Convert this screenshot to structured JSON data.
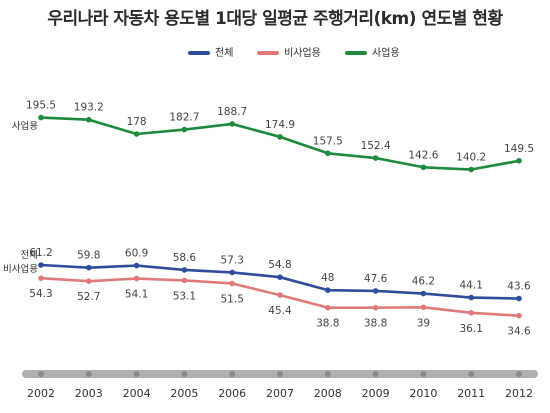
{
  "chart_data": {
    "type": "line",
    "title": "우리나라 자동차 용도별 1대당 일평균 주행거리(km) 연도별 현황",
    "categories": [
      "2002",
      "2003",
      "2004",
      "2005",
      "2006",
      "2007",
      "2008",
      "2009",
      "2010",
      "2011",
      "2012"
    ],
    "series": [
      {
        "name": "전체",
        "color": "#2e4e9c",
        "values": [
          61.2,
          59.8,
          60.9,
          58.6,
          57.3,
          54.8,
          48,
          47.6,
          46.2,
          44.1,
          43.6
        ]
      },
      {
        "name": "비사업용",
        "color": "#e07a7a",
        "values": [
          54.3,
          52.7,
          54.1,
          53.1,
          51.5,
          45.4,
          38.8,
          38.8,
          39,
          36.1,
          34.6
        ]
      },
      {
        "name": "사업용",
        "color": "#1d8a3c",
        "values": [
          195.5,
          193.2,
          178,
          182.7,
          188.7,
          174.9,
          157.5,
          152.4,
          142.6,
          140.2,
          149.5
        ]
      }
    ],
    "legend": {
      "position": "top-center",
      "entries": [
        "전체",
        "비사업용",
        "사업용"
      ]
    },
    "series_labels": {
      "business": "사업용",
      "total": "전체",
      "nonbusiness": "비사업용"
    },
    "grid": false,
    "axis_bar_color": "#b0b0b0"
  }
}
